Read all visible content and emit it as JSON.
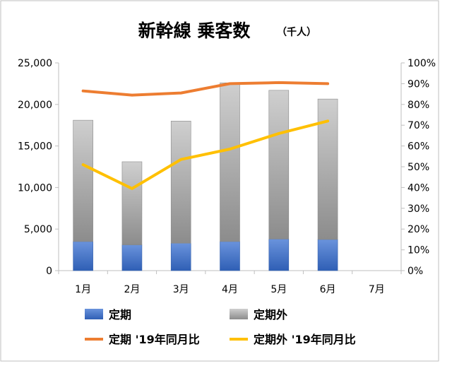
{
  "chart_data": {
    "type": "bar+line",
    "title": "新幹線 乗客数",
    "subtitle": "（千人）",
    "categories": [
      "1月",
      "2月",
      "3月",
      "4月",
      "5月",
      "6月",
      "7月"
    ],
    "y_left": {
      "min": 0,
      "max": 25000,
      "ticks": [
        "0",
        "5,000",
        "10,000",
        "15,000",
        "20,000",
        "25,000"
      ]
    },
    "y_right": {
      "min": 0,
      "max": 1.0,
      "ticks": [
        "0%",
        "10%",
        "20%",
        "30%",
        "40%",
        "50%",
        "60%",
        "70%",
        "80%",
        "90%",
        "100%"
      ]
    },
    "bar_series": [
      {
        "name": "定期",
        "color": "#4472C4",
        "values": [
          3500,
          3100,
          3300,
          3500,
          3800,
          3750,
          null
        ]
      },
      {
        "name": "定期外",
        "color": "#A5A5A5",
        "values": [
          14600,
          10000,
          14700,
          19100,
          17900,
          16900,
          null
        ]
      }
    ],
    "line_series": [
      {
        "name": "定期 '19年同月比",
        "color": "#ED7D31",
        "values": [
          0.865,
          0.845,
          0.855,
          0.9,
          0.905,
          0.9,
          null
        ]
      },
      {
        "name": "定期外 '19年同月比",
        "color": "#FFC000",
        "values": [
          0.51,
          0.395,
          0.535,
          0.585,
          0.66,
          0.72,
          null
        ]
      }
    ],
    "legend_placement": "bottom",
    "grid": false
  }
}
